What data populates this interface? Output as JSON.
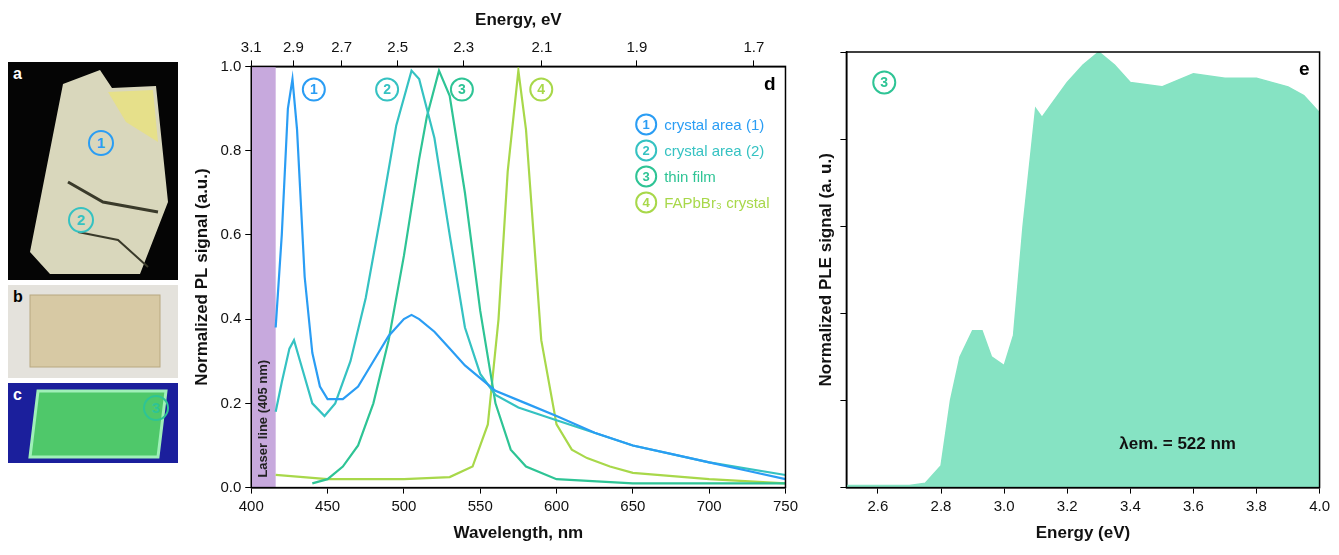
{
  "photos": [
    {
      "letter": "a",
      "markers": [
        {
          "text": "1",
          "color": "#2a9df4"
        },
        {
          "text": "2",
          "color": "#35c2c2"
        }
      ]
    },
    {
      "letter": "b",
      "markers": []
    },
    {
      "letter": "c",
      "markers": [
        {
          "text": "3",
          "color": "#2ec495"
        }
      ]
    }
  ],
  "chart_data": [
    {
      "type": "line",
      "panel": "d",
      "x_label": "Wavelength, nm",
      "x2_label": "Energy, eV",
      "y_label": "Normalized PL signal (a.u.)",
      "xlim": [
        400,
        750
      ],
      "xticks": [
        400,
        450,
        500,
        550,
        600,
        650,
        700,
        750
      ],
      "x2lim": [
        400,
        750
      ],
      "x2ticks": [
        {
          "value": 400,
          "label": "3.1"
        },
        {
          "value": 427.6,
          "label": "2.9"
        },
        {
          "value": 459.2,
          "label": "2.7"
        },
        {
          "value": 496,
          "label": "2.5"
        },
        {
          "value": 539.1,
          "label": "2.3"
        },
        {
          "value": 590.4,
          "label": "2.1"
        },
        {
          "value": 652.6,
          "label": "1.9"
        },
        {
          "value": 729.3,
          "label": "1.7"
        }
      ],
      "ylim": [
        0,
        1
      ],
      "yticks": [
        {
          "value": 0,
          "label": "0.0"
        },
        0.2,
        0.4,
        0.6,
        0.8,
        {
          "value": 1,
          "label": "1.0"
        }
      ],
      "grid": false,
      "legend": "upper right",
      "shaded_region": {
        "x": [
          400,
          416
        ],
        "label": "Laser line (405 nm)",
        "color": "#c7a9dd"
      },
      "annotations": [
        {
          "text": "1",
          "x": 441,
          "y": 0.945,
          "color": "#2a9df4",
          "marker": "circle"
        },
        {
          "text": "2",
          "x": 489,
          "y": 0.945,
          "color": "#35c2c2",
          "marker": "circle"
        },
        {
          "text": "3",
          "x": 538,
          "y": 0.945,
          "color": "#2ec495",
          "marker": "circle"
        },
        {
          "text": "4",
          "x": 590,
          "y": 0.945,
          "color": "#a8d84a",
          "marker": "circle"
        }
      ],
      "series": [
        {
          "name": "crystal area (1)",
          "label": "1",
          "color": "#2a9df4",
          "x": [
            416,
            420,
            424,
            427,
            430,
            435,
            440,
            445,
            450,
            460,
            470,
            480,
            490,
            500,
            505,
            510,
            520,
            530,
            540,
            550,
            560,
            580,
            600,
            625,
            650,
            675,
            700,
            725,
            750
          ],
          "values": [
            0.38,
            0.6,
            0.9,
            0.97,
            0.85,
            0.5,
            0.32,
            0.24,
            0.21,
            0.21,
            0.24,
            0.3,
            0.36,
            0.4,
            0.41,
            0.4,
            0.37,
            0.33,
            0.29,
            0.26,
            0.23,
            0.2,
            0.17,
            0.13,
            0.1,
            0.08,
            0.06,
            0.04,
            0.02
          ]
        },
        {
          "name": "crystal area (2)",
          "label": "2",
          "color": "#35c2c2",
          "x": [
            416,
            420,
            425,
            428,
            432,
            440,
            448,
            455,
            465,
            475,
            485,
            495,
            505,
            510,
            520,
            530,
            540,
            550,
            560,
            575,
            600,
            650,
            700,
            750
          ],
          "values": [
            0.18,
            0.25,
            0.33,
            0.35,
            0.3,
            0.2,
            0.17,
            0.2,
            0.3,
            0.45,
            0.65,
            0.86,
            0.99,
            0.97,
            0.83,
            0.6,
            0.38,
            0.27,
            0.22,
            0.19,
            0.16,
            0.1,
            0.06,
            0.03
          ]
        },
        {
          "name": "thin film",
          "label": "3",
          "color": "#2ec495",
          "x": [
            440,
            450,
            460,
            470,
            480,
            490,
            500,
            510,
            515,
            523,
            530,
            540,
            550,
            560,
            570,
            580,
            600,
            650,
            700,
            750
          ],
          "values": [
            0.01,
            0.02,
            0.05,
            0.1,
            0.2,
            0.35,
            0.55,
            0.78,
            0.88,
            0.99,
            0.93,
            0.7,
            0.42,
            0.2,
            0.09,
            0.05,
            0.02,
            0.01,
            0.01,
            0.01
          ]
        },
        {
          "name": "FAPbBr₃ crystal",
          "label": "4",
          "color": "#a8d84a",
          "x": [
            416,
            450,
            500,
            530,
            545,
            555,
            562,
            568,
            575,
            580,
            585,
            590,
            600,
            610,
            620,
            635,
            650,
            700,
            750
          ],
          "values": [
            0.03,
            0.02,
            0.02,
            0.025,
            0.05,
            0.15,
            0.4,
            0.75,
            0.99,
            0.85,
            0.6,
            0.35,
            0.15,
            0.09,
            0.07,
            0.05,
            0.035,
            0.02,
            0.01
          ]
        }
      ]
    },
    {
      "type": "area",
      "panel": "e",
      "x_label": "Energy (eV)",
      "y_label": "Normalized PLE signal (a. u.)",
      "xlim": [
        2.5,
        4.0
      ],
      "xticks": [
        2.6,
        2.8,
        {
          "value": 3,
          "label": "3.0"
        },
        3.2,
        3.4,
        3.6,
        3.8,
        {
          "value": 4,
          "label": "4.0"
        }
      ],
      "ylim": [
        0,
        1
      ],
      "yticks": [
        0,
        0.2,
        0.4,
        0.6,
        0.8,
        1
      ],
      "tick_labels": "x",
      "grid": false,
      "color": "#86e3c3",
      "annotations": [
        {
          "text": "3",
          "x": 2.62,
          "y": 0.93,
          "color": "#2ec495",
          "marker": "circle"
        },
        {
          "text": "λem. = 522 nm",
          "x": 3.55,
          "y": 0.1,
          "color": "#111111"
        }
      ],
      "x": [
        2.5,
        2.7,
        2.75,
        2.8,
        2.83,
        2.86,
        2.9,
        2.93,
        2.96,
        3.0,
        3.03,
        3.06,
        3.1,
        3.12,
        3.15,
        3.2,
        3.25,
        3.3,
        3.35,
        3.4,
        3.5,
        3.6,
        3.7,
        3.8,
        3.9,
        3.95,
        4.0
      ],
      "values": [
        0.005,
        0.005,
        0.01,
        0.05,
        0.2,
        0.3,
        0.36,
        0.36,
        0.3,
        0.28,
        0.35,
        0.6,
        0.87,
        0.85,
        0.88,
        0.93,
        0.97,
        1.0,
        0.97,
        0.93,
        0.92,
        0.95,
        0.94,
        0.94,
        0.92,
        0.9,
        0.86
      ]
    }
  ]
}
